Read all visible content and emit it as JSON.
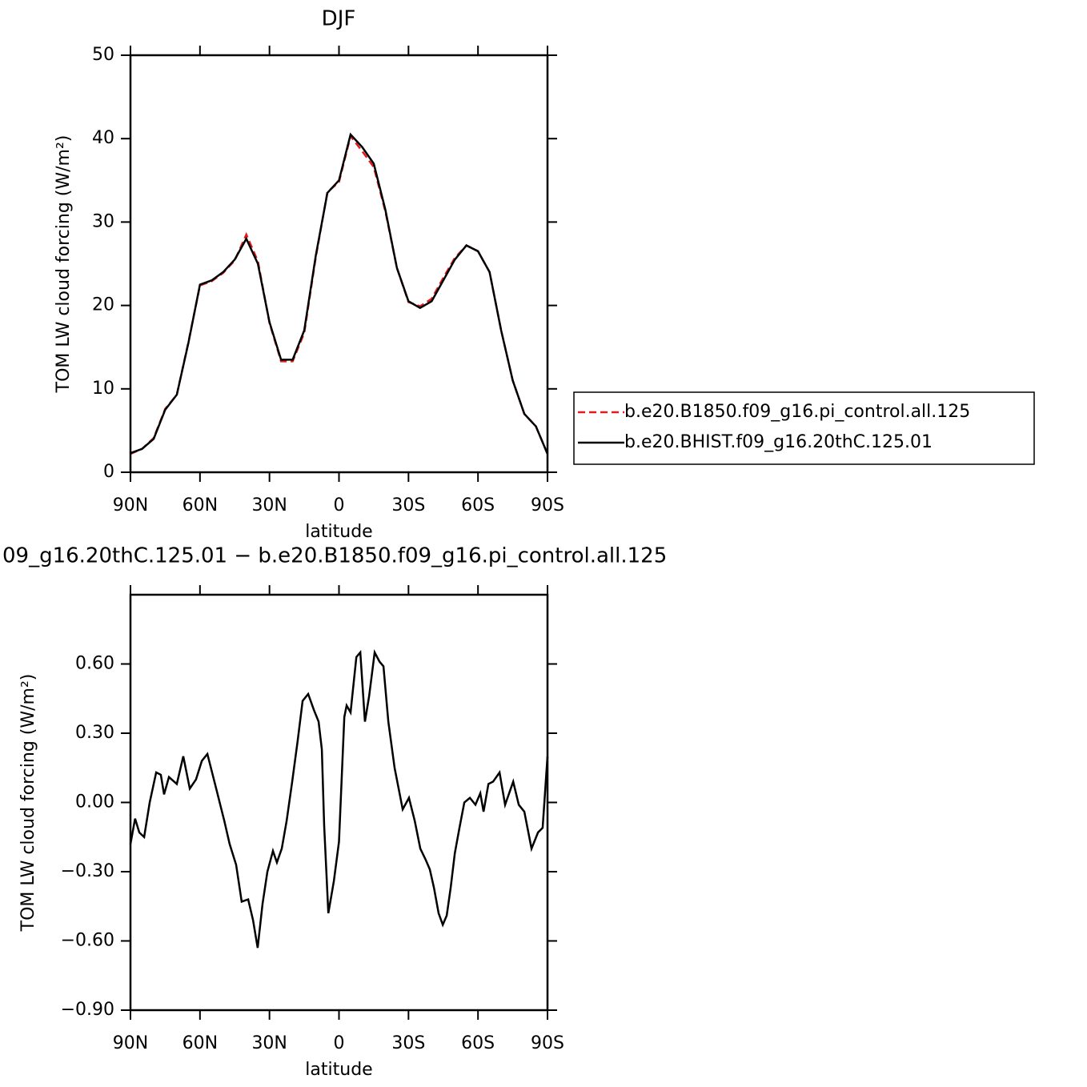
{
  "chart_data": [
    {
      "type": "line",
      "title": "DJF",
      "xlabel": "latitude",
      "ylabel": "TOM LW cloud forcing (W/m²)",
      "x": [
        90,
        85,
        80,
        75,
        70,
        65,
        60,
        55,
        50,
        45,
        40,
        35,
        30,
        25,
        20,
        15,
        10,
        5,
        0,
        -5,
        -10,
        -15,
        -20,
        -25,
        -30,
        -35,
        -40,
        -45,
        -50,
        -55,
        -60,
        -65,
        -70,
        -75,
        -80,
        -85,
        -90
      ],
      "series": [
        {
          "name": "b.e20.B1850.f09_g16.pi_control.all.125",
          "color": "#e41a1c",
          "line_style": "dashed",
          "values": [
            2.2,
            2.8,
            4.1,
            7.6,
            9.3,
            15.6,
            22.4,
            22.9,
            23.9,
            25.4,
            28.5,
            25.3,
            17.9,
            13.3,
            13.3,
            16.7,
            25.8,
            33.6,
            34.8,
            40.3,
            38.5,
            36.6,
            31.3,
            24.5,
            20.4,
            19.9,
            20.8,
            23.3,
            25.7,
            27.2,
            26.5,
            24.0,
            17.0,
            11.0,
            7.0,
            5.5,
            2.2
          ]
        },
        {
          "name": "b.e20.BHIST.f09_g16.20thC.125.01",
          "color": "#000000",
          "line_style": "solid",
          "values": [
            2.3,
            2.8,
            4.0,
            7.5,
            9.3,
            15.5,
            22.5,
            23.0,
            24.0,
            25.5,
            28.0,
            25.0,
            18.0,
            13.5,
            13.5,
            17.0,
            26.0,
            33.5,
            35.0,
            40.5,
            39.0,
            37.0,
            31.5,
            24.5,
            20.5,
            19.7,
            20.5,
            23.0,
            25.5,
            27.2,
            26.5,
            24.0,
            17.0,
            11.0,
            7.0,
            5.5,
            2.2
          ]
        }
      ],
      "xlim": [
        90,
        -90
      ],
      "xticks": [
        {
          "value": 90,
          "label": "90N"
        },
        {
          "value": 60,
          "label": "60N"
        },
        {
          "value": 30,
          "label": "30N"
        },
        0,
        {
          "value": -30,
          "label": "30S"
        },
        {
          "value": -60,
          "label": "60S"
        },
        {
          "value": -90,
          "label": "90S"
        }
      ],
      "ylim": [
        0,
        50
      ],
      "yticks": [
        0,
        10,
        20,
        30,
        40,
        50
      ],
      "legend": "right"
    },
    {
      "type": "line",
      "title": "09_g16.20thC.125.01 − b.e20.B1850.f09_g16.pi_control.all.125",
      "xlabel": "latitude",
      "ylabel": "TOM LW cloud forcing (W/m²)",
      "x": [
        90,
        88,
        86.2,
        84.1,
        81.7,
        78.9,
        76.9,
        75.5,
        73.4,
        70,
        67.2,
        64.4,
        61.7,
        59.2,
        56.8,
        53,
        49.5,
        47.2,
        44.4,
        42,
        39.2,
        37.1,
        35.1,
        33,
        30.9,
        28.5,
        26.8,
        24.7,
        22.6,
        20.2,
        17.8,
        15.7,
        13.3,
        10.8,
        8.8,
        7.4,
        6.4,
        4.6,
        2.2,
        0,
        -2.3,
        -3.3,
        -5,
        -7.5,
        -9.2,
        -11.2,
        -13,
        -15.4,
        -17.5,
        -19.2,
        -21.3,
        -24,
        -27.5,
        -30.2,
        -32.7,
        -35.1,
        -37.5,
        -39.2,
        -41,
        -43,
        -44.8,
        -46.5,
        -48.2,
        -50,
        -52,
        -54.1,
        -56.5,
        -58.9,
        -61,
        -62.4,
        -64.5,
        -66.5,
        -69.3,
        -71.7,
        -75.2,
        -77.6,
        -80,
        -83.1,
        -85.9,
        -87.9,
        -90
      ],
      "series": [
        {
          "color": "#000000",
          "line_style": "solid",
          "values": [
            -0.18,
            -0.07,
            -0.13,
            -0.15,
            0.0,
            0.13,
            0.12,
            0.035,
            0.11,
            0.08,
            0.2,
            0.06,
            0.1,
            0.18,
            0.21,
            0.06,
            -0.08,
            -0.18,
            -0.27,
            -0.43,
            -0.42,
            -0.51,
            -0.63,
            -0.44,
            -0.3,
            -0.21,
            -0.26,
            -0.2,
            -0.08,
            0.09,
            0.27,
            0.44,
            0.47,
            0.4,
            0.35,
            0.23,
            -0.1,
            -0.48,
            -0.34,
            -0.17,
            0.37,
            0.42,
            0.39,
            0.63,
            0.65,
            0.35,
            0.46,
            0.65,
            0.61,
            0.59,
            0.35,
            0.15,
            -0.03,
            0.02,
            -0.08,
            -0.2,
            -0.25,
            -0.29,
            -0.37,
            -0.48,
            -0.53,
            -0.49,
            -0.37,
            -0.22,
            -0.11,
            0.0,
            0.02,
            -0.01,
            0.04,
            -0.04,
            0.08,
            0.09,
            0.13,
            -0.01,
            0.09,
            -0.01,
            -0.04,
            -0.2,
            -0.13,
            -0.11,
            0.2
          ]
        }
      ],
      "xlim": [
        90,
        -90
      ],
      "xticks": [
        {
          "value": 90,
          "label": "90N"
        },
        {
          "value": 60,
          "label": "60N"
        },
        {
          "value": 30,
          "label": "30N"
        },
        0,
        {
          "value": -30,
          "label": "30S"
        },
        {
          "value": -60,
          "label": "60S"
        },
        {
          "value": -90,
          "label": "90S"
        }
      ],
      "ylim": [
        -0.9,
        0.9
      ],
      "yticks": [
        {
          "value": -0.9,
          "label": "−0.90"
        },
        {
          "value": -0.6,
          "label": "−0.60"
        },
        {
          "value": -0.3,
          "label": "−0.30"
        },
        {
          "value": 0,
          "label": "0.00"
        },
        {
          "value": 0.3,
          "label": "0.30"
        },
        {
          "value": 0.6,
          "label": "0.60"
        }
      ]
    }
  ]
}
